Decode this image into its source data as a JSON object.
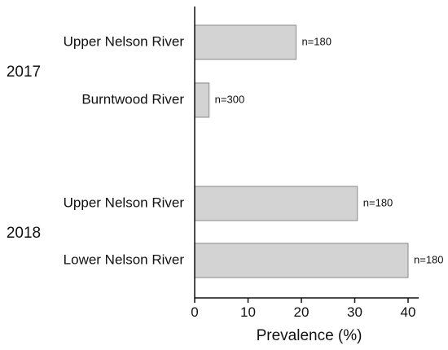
{
  "chart_data": {
    "type": "bar",
    "orientation": "horizontal",
    "groups": [
      {
        "label": "2017",
        "bars": [
          {
            "category": "Upper Nelson River",
            "value": 19,
            "label": "n=180"
          },
          {
            "category": "Burntwood River",
            "value": 2.7,
            "label": "n=300"
          }
        ]
      },
      {
        "label": "2018",
        "bars": [
          {
            "category": "Upper Nelson River",
            "value": 30.5,
            "label": "n=180"
          },
          {
            "category": "Lower Nelson River",
            "value": 40,
            "label": "n=180"
          }
        ]
      }
    ],
    "title": "",
    "xlabel": "Prevalence (%)",
    "ylabel": "",
    "xlim": [
      0,
      42
    ],
    "xticks": [
      0,
      10,
      20,
      30,
      40
    ],
    "grid": false,
    "bar_color": "#d3d3d3",
    "bar_edge_color": "#8a8a8a"
  }
}
